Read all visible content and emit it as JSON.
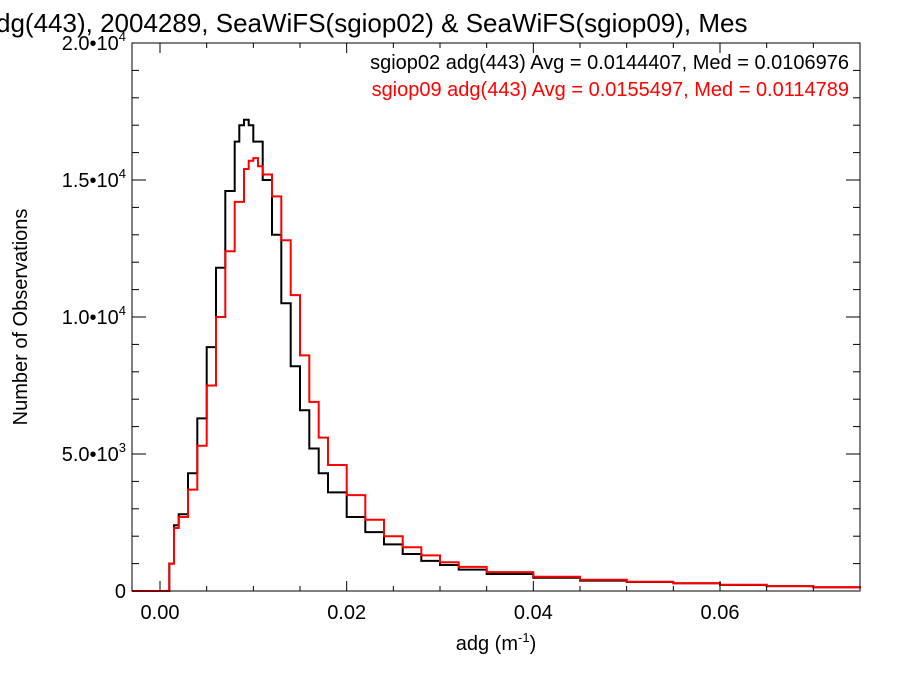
{
  "chart_data": {
    "type": "line",
    "step": true,
    "title": "dg(443), 2004289, SeaWiFS(sgiop02) & SeaWiFS(sgiop09), Mes",
    "xlabel": "adg (m",
    "xlabel_sup": "-1",
    "xlabel_end": ")",
    "ylabel": "Number of Observations",
    "xlim": [
      -0.003,
      0.075
    ],
    "ylim": [
      0,
      20000
    ],
    "grid": false,
    "x_ticks": [
      {
        "value": 0.0,
        "label": "0.00"
      },
      {
        "value": 0.02,
        "label": "0.02"
      },
      {
        "value": 0.04,
        "label": "0.04"
      },
      {
        "value": 0.06,
        "label": "0.06"
      }
    ],
    "y_ticks": [
      {
        "value": 0,
        "mant": "0",
        "exp": ""
      },
      {
        "value": 5000,
        "mant": "5.0•10",
        "exp": "3"
      },
      {
        "value": 10000,
        "mant": "1.0•10",
        "exp": "4"
      },
      {
        "value": 15000,
        "mant": "1.5•10",
        "exp": "4"
      },
      {
        "value": 20000,
        "mant": "2.0•10",
        "exp": "4"
      }
    ],
    "legend": [
      {
        "text": "sgiop02 adg(443) Avg = 0.0144407, Med = 0.0106976",
        "color": "#000000"
      },
      {
        "text": "sgiop09 adg(443) Avg = 0.0155497, Med = 0.0114789",
        "color": "#ff0000"
      }
    ],
    "legend_position": "top-right",
    "series": [
      {
        "color": "#000000",
        "x": [
          -0.003,
          0.0,
          0.001,
          0.0015,
          0.002,
          0.003,
          0.004,
          0.005,
          0.006,
          0.007,
          0.008,
          0.0085,
          0.009,
          0.0095,
          0.01,
          0.011,
          0.012,
          0.013,
          0.014,
          0.015,
          0.016,
          0.017,
          0.018,
          0.02,
          0.022,
          0.024,
          0.026,
          0.028,
          0.03,
          0.032,
          0.035,
          0.04,
          0.045,
          0.05,
          0.055,
          0.06,
          0.065,
          0.07,
          0.075
        ],
        "y": [
          0,
          0,
          1000,
          2400,
          2800,
          4300,
          6300,
          8900,
          11800,
          14600,
          16400,
          17000,
          17200,
          17000,
          16400,
          15000,
          13000,
          10500,
          8200,
          6600,
          5200,
          4300,
          3600,
          2700,
          2150,
          1700,
          1350,
          1100,
          950,
          780,
          620,
          480,
          380,
          330,
          280,
          220,
          180,
          140,
          100
        ]
      },
      {
        "color": "#ff0000",
        "x": [
          -0.003,
          0.0,
          0.001,
          0.0015,
          0.002,
          0.003,
          0.004,
          0.005,
          0.006,
          0.007,
          0.008,
          0.009,
          0.0095,
          0.01,
          0.0105,
          0.011,
          0.012,
          0.013,
          0.014,
          0.015,
          0.016,
          0.017,
          0.018,
          0.02,
          0.022,
          0.024,
          0.026,
          0.028,
          0.03,
          0.032,
          0.035,
          0.04,
          0.045,
          0.05,
          0.055,
          0.06,
          0.065,
          0.07,
          0.075
        ],
        "y": [
          0,
          0,
          1000,
          2300,
          2700,
          3700,
          5300,
          7500,
          10000,
          12400,
          14200,
          15400,
          15700,
          15800,
          15500,
          15200,
          14400,
          12800,
          10800,
          8600,
          6900,
          5600,
          4600,
          3500,
          2600,
          2000,
          1600,
          1300,
          1050,
          880,
          690,
          520,
          410,
          340,
          280,
          230,
          180,
          140,
          100
        ]
      }
    ]
  }
}
